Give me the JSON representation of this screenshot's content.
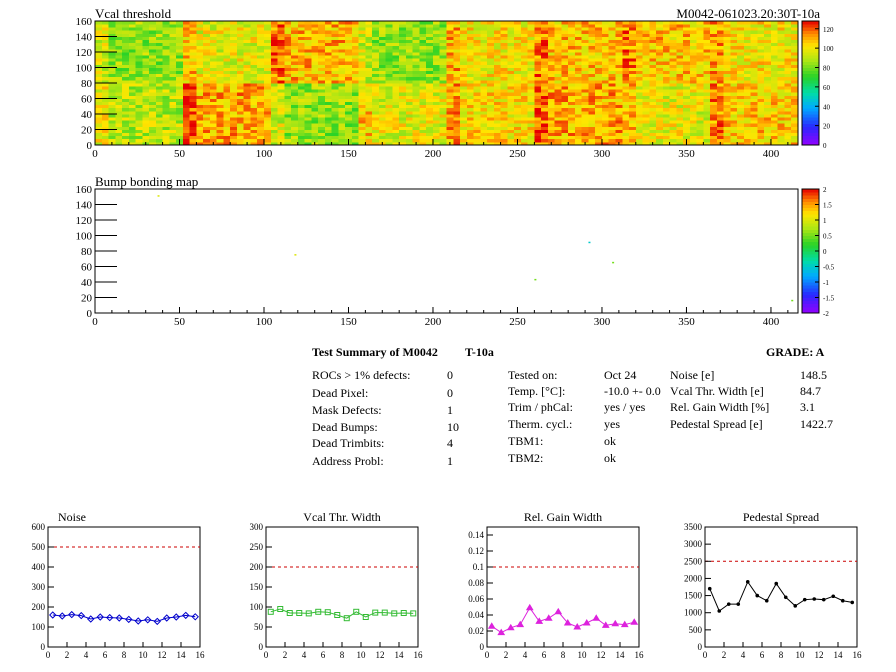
{
  "map_vcal": {
    "title": "Vcal threshold",
    "id_label": "M0042-061023.20:30T-10a",
    "x_ticks": [
      "0",
      "50",
      "100",
      "150",
      "200",
      "250",
      "300",
      "350",
      "400"
    ],
    "y_ticks": [
      "0",
      "20",
      "40",
      "60",
      "80",
      "100",
      "120",
      "140",
      "160"
    ],
    "scale_labels": [
      "0",
      "20",
      "40",
      "60",
      "80",
      "100",
      "120"
    ]
  },
  "map_bump": {
    "title": "Bump bonding map",
    "x_ticks": [
      "0",
      "50",
      "100",
      "150",
      "200",
      "250",
      "300",
      "350",
      "400"
    ],
    "y_ticks": [
      "0",
      "20",
      "40",
      "60",
      "80",
      "100",
      "120",
      "140",
      "160"
    ],
    "scale_labels": [
      "-2",
      "-1.5",
      "-1",
      "-0.5",
      "0",
      "0.5",
      "1",
      "1.5",
      "2"
    ]
  },
  "summary": {
    "header": "Test Summary of M0042",
    "temp_tag": "T-10a",
    "grade": "GRADE:  A",
    "defects": [
      {
        "label": "ROCs > 1% defects:",
        "value": "0"
      },
      {
        "label": "Dead Pixel:",
        "value": "0"
      },
      {
        "label": "Mask Defects:",
        "value": "1"
      },
      {
        "label": "Dead Bumps:",
        "value": "10"
      },
      {
        "label": "Dead Trimbits:",
        "value": "4"
      },
      {
        "label": "Address Probl:",
        "value": "1"
      }
    ],
    "conditions": [
      {
        "label": "Tested on:",
        "value": "Oct 24"
      },
      {
        "label": "Temp. [°C]:",
        "value": "-10.0 +- 0.0"
      },
      {
        "label": "Trim / phCal:",
        "value": "yes / yes"
      },
      {
        "label": "Therm. cycl.:",
        "value": "yes"
      },
      {
        "label": "TBM1:",
        "value": "ok"
      },
      {
        "label": "TBM2:",
        "value": "ok"
      }
    ],
    "results": [
      {
        "label": "Noise [e]",
        "value": "148.5"
      },
      {
        "label": "Vcal Thr. Width [e]",
        "value": "84.7"
      },
      {
        "label": "Rel. Gain Width [%]",
        "value": "3.1"
      },
      {
        "label": "Pedestal Spread [e]",
        "value": "1422.7"
      }
    ]
  },
  "colors": {
    "noise": "#0000cc",
    "vcal": "#33bb33",
    "gain": "#dd22dd",
    "pedestal": "#000000",
    "limit": "#cc0000"
  },
  "chart_data": [
    {
      "type": "heatmap",
      "title": "Vcal threshold",
      "xlim": [
        0,
        416
      ],
      "ylim": [
        0,
        160
      ],
      "zlim": [
        0,
        120
      ],
      "note_values": "ROC-level mean threshold, columns of 8 ROCs, two rows",
      "roc_grid": {
        "cols": [
          0,
          52,
          104,
          156,
          208,
          260,
          312,
          364,
          416
        ],
        "rows": [
          0,
          80,
          160
        ]
      },
      "roc_means": [
        [
          78,
          100,
          72,
          86,
          92,
          100,
          86,
          95
        ],
        [
          72,
          86,
          98,
          72,
          90,
          96,
          96,
          90
        ]
      ]
    },
    {
      "type": "scatter",
      "title": "Bump bonding map",
      "xlim": [
        0,
        416
      ],
      "ylim": [
        0,
        160
      ],
      "zlim": [
        -2,
        2
      ],
      "points": [
        {
          "x": 37,
          "y": 152,
          "z": 1
        },
        {
          "x": 118,
          "y": 76,
          "z": 1
        },
        {
          "x": 260,
          "y": 44,
          "z": 0.5
        },
        {
          "x": 292,
          "y": 92,
          "z": -0.5
        },
        {
          "x": 306,
          "y": 66,
          "z": 0.5
        },
        {
          "x": 412,
          "y": 17,
          "z": 0.5
        }
      ]
    },
    {
      "type": "line",
      "title": "Noise",
      "x": [
        0,
        1,
        2,
        3,
        4,
        5,
        6,
        7,
        8,
        9,
        10,
        11,
        12,
        13,
        14,
        15
      ],
      "values": [
        160,
        155,
        162,
        157,
        140,
        150,
        147,
        145,
        138,
        130,
        136,
        128,
        145,
        150,
        158,
        151
      ],
      "xlim": [
        0,
        16
      ],
      "ylim": [
        0,
        600
      ],
      "limit": 500,
      "y_ticks": [
        "0",
        "100",
        "200",
        "300",
        "400",
        "500",
        "600"
      ],
      "x_ticks": [
        "0",
        "2",
        "4",
        "6",
        "8",
        "10",
        "12",
        "14",
        "16"
      ]
    },
    {
      "type": "line",
      "title": "Vcal Thr. Width",
      "x": [
        0,
        1,
        2,
        3,
        4,
        5,
        6,
        7,
        8,
        9,
        10,
        11,
        12,
        13,
        14,
        15
      ],
      "values": [
        88,
        95,
        85,
        85,
        84,
        88,
        87,
        80,
        72,
        88,
        75,
        86,
        86,
        84,
        85,
        84
      ],
      "xlim": [
        0,
        16
      ],
      "ylim": [
        0,
        300
      ],
      "limit": 200,
      "y_ticks": [
        "0",
        "50",
        "100",
        "150",
        "200",
        "250",
        "300"
      ],
      "x_ticks": [
        "0",
        "2",
        "4",
        "6",
        "8",
        "10",
        "12",
        "14",
        "16"
      ]
    },
    {
      "type": "line",
      "title": "Rel. Gain Width",
      "x": [
        0,
        1,
        2,
        3,
        4,
        5,
        6,
        7,
        8,
        9,
        10,
        11,
        12,
        13,
        14,
        15
      ],
      "values": [
        0.026,
        0.018,
        0.024,
        0.028,
        0.049,
        0.032,
        0.036,
        0.044,
        0.03,
        0.025,
        0.03,
        0.036,
        0.027,
        0.029,
        0.028,
        0.031
      ],
      "xlim": [
        0,
        16
      ],
      "ylim": [
        0,
        0.15
      ],
      "limit": 0.1,
      "y_ticks": [
        "0",
        "0.02",
        "0.04",
        "0.06",
        "0.08",
        "0.1",
        "0.12",
        "0.14"
      ],
      "x_ticks": [
        "0",
        "2",
        "4",
        "6",
        "8",
        "10",
        "12",
        "14",
        "16"
      ]
    },
    {
      "type": "line",
      "title": "Pedestal Spread",
      "x": [
        0,
        1,
        2,
        3,
        4,
        5,
        6,
        7,
        8,
        9,
        10,
        11,
        12,
        13,
        14,
        15
      ],
      "values": [
        1700,
        1050,
        1250,
        1250,
        1900,
        1500,
        1350,
        1850,
        1450,
        1200,
        1380,
        1400,
        1380,
        1480,
        1350,
        1300
      ],
      "xlim": [
        0,
        16
      ],
      "ylim": [
        0,
        3500
      ],
      "limit": 2500,
      "y_ticks": [
        "0",
        "500",
        "1000",
        "1500",
        "2000",
        "2500",
        "3000",
        "3500"
      ],
      "x_ticks": [
        "0",
        "2",
        "4",
        "6",
        "8",
        "10",
        "12",
        "14",
        "16"
      ]
    }
  ]
}
